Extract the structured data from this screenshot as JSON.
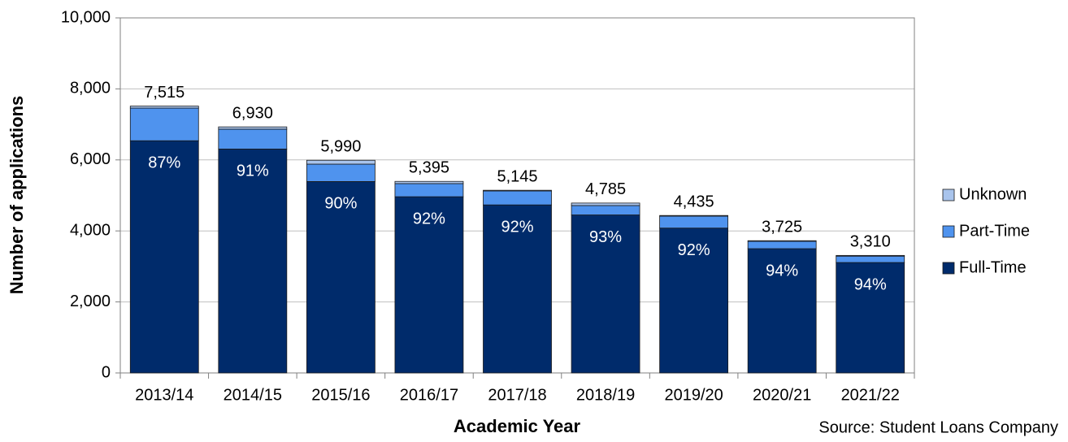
{
  "chart_data": {
    "type": "stacked_bar",
    "xlabel": "Academic Year",
    "ylabel": "Number of applications",
    "source": "Source: Student Loans Company",
    "categories": [
      "2013/14",
      "2014/15",
      "2015/16",
      "2016/17",
      "2017/18",
      "2018/19",
      "2019/20",
      "2020/21",
      "2021/22"
    ],
    "series": [
      {
        "name": "Full-Time",
        "color": "#002b6b",
        "values": [
          6540,
          6306,
          5391,
          4963,
          4733,
          4450,
          4080,
          3500,
          3110
        ]
      },
      {
        "name": "Part-Time",
        "color": "#4f93ee",
        "values": [
          920,
          560,
          490,
          370,
          392,
          265,
          335,
          205,
          180
        ]
      },
      {
        "name": "Unknown",
        "color": "#a9c4ec",
        "values": [
          55,
          64,
          109,
          62,
          20,
          70,
          20,
          20,
          20
        ]
      }
    ],
    "shares": [
      "87%",
      "91%",
      "90%",
      "92%",
      "92%",
      "93%",
      "92%",
      "94%",
      "94%"
    ],
    "totals": [
      {
        "value": 7515,
        "label": "7,515"
      },
      {
        "value": 6930,
        "label": "6,930"
      },
      {
        "value": 5990,
        "label": "5,990"
      },
      {
        "value": 5395,
        "label": "5,395"
      },
      {
        "value": 5145,
        "label": "5,145"
      },
      {
        "value": 4785,
        "label": "4,785"
      },
      {
        "value": 4435,
        "label": "4,435"
      },
      {
        "value": 3725,
        "label": "3,725"
      },
      {
        "value": 3310,
        "label": "3,310"
      }
    ],
    "ylim": [
      0,
      10000
    ],
    "yticks": [
      0,
      {
        "value": 2000,
        "label": "2,000"
      },
      {
        "value": 4000,
        "label": "4,000"
      },
      {
        "value": 6000,
        "label": "6,000"
      },
      {
        "value": 8000,
        "label": "8,000"
      },
      {
        "value": 10000,
        "label": "10,000"
      }
    ],
    "grid": true,
    "legend": "right"
  }
}
